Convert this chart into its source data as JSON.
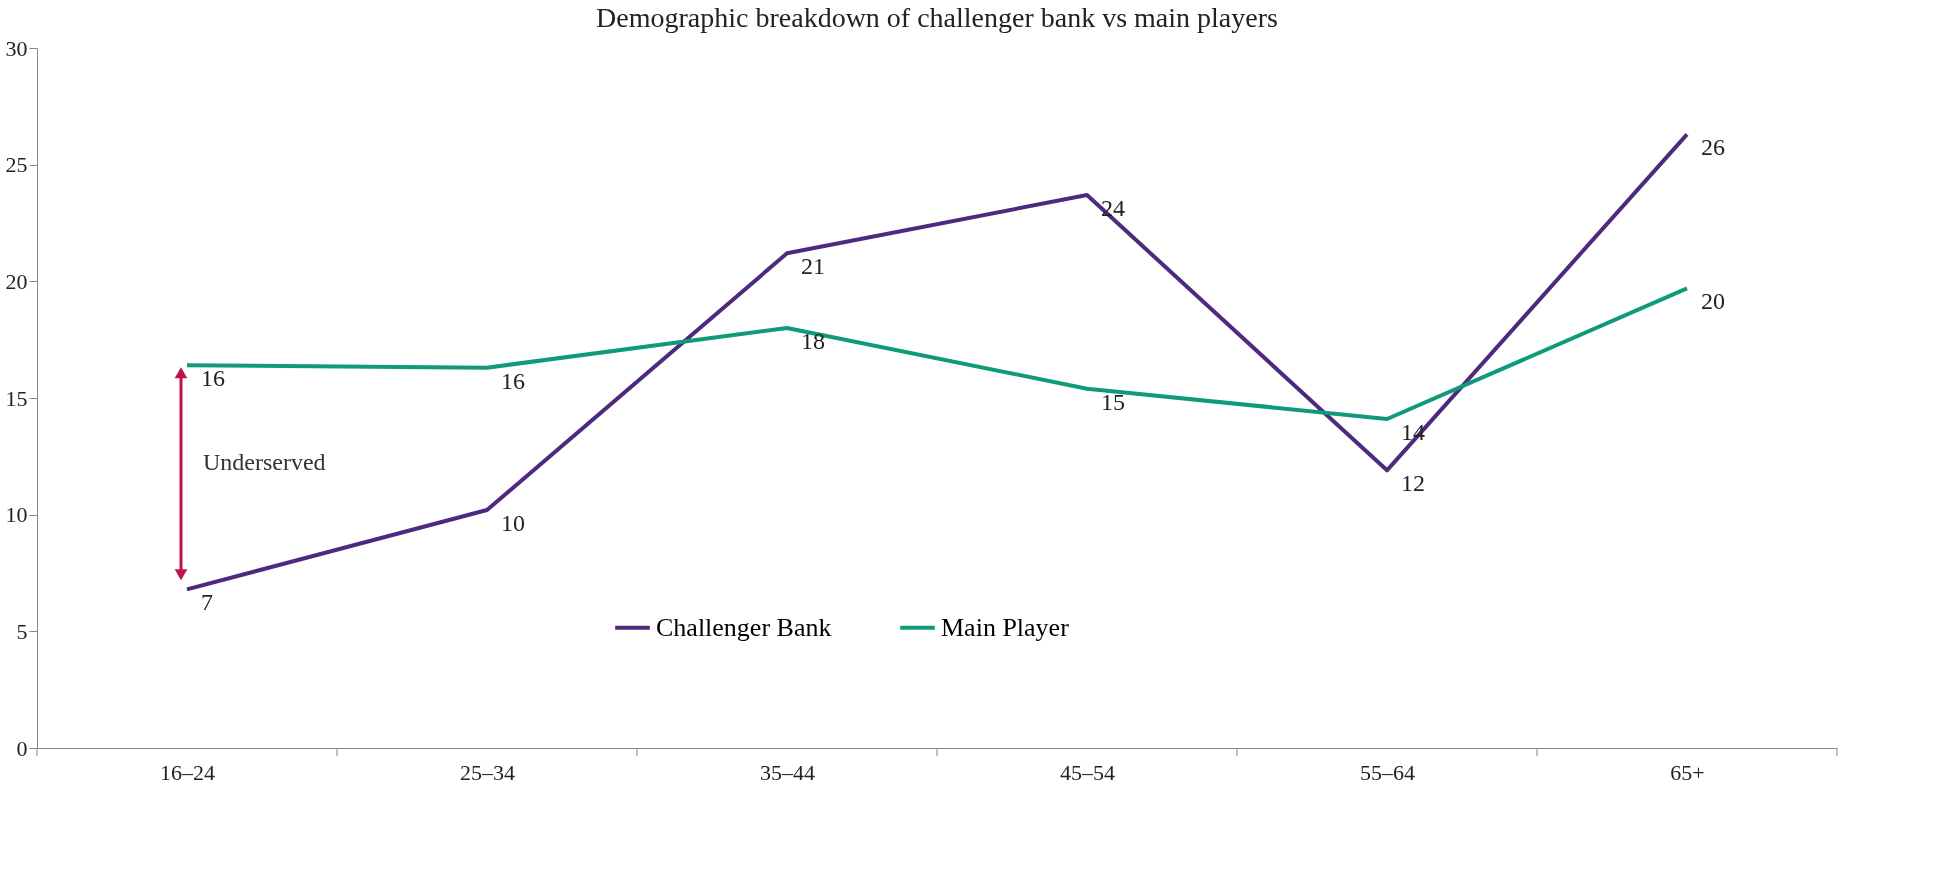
{
  "chart_data": {
    "type": "line",
    "title": "Demographic breakdown of challenger bank vs main players",
    "categories": [
      "16–24",
      "25–34",
      "35–44",
      "45–54",
      "55–64",
      "65+"
    ],
    "series": [
      {
        "name": "Challenger Bank",
        "color": "#4e2a7e",
        "values": [
          6.8,
          10.2,
          21.2,
          23.7,
          11.9,
          26.3
        ],
        "value_labels": [
          "7",
          "10",
          "21",
          "24",
          "12",
          "26"
        ]
      },
      {
        "name": "Main Player",
        "color": "#0f9b7a",
        "values": [
          16.4,
          16.3,
          18.0,
          15.4,
          14.1,
          19.7
        ],
        "value_labels": [
          "16",
          "16",
          "18",
          "15",
          "14",
          "20"
        ]
      }
    ],
    "ylim": [
      0,
      30
    ],
    "yticks": [
      0,
      5,
      10,
      15,
      20,
      25,
      30
    ],
    "grid": false,
    "legend": "bottom",
    "marker": "none",
    "line_style": "solid",
    "annotations": [
      "Underserved"
    ]
  }
}
